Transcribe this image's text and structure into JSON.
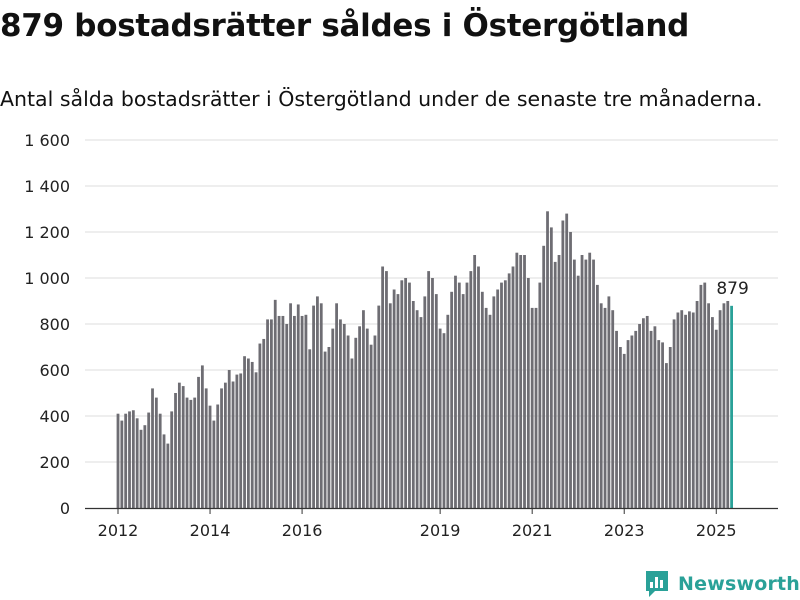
{
  "title": "879 bostadsrätter såldes i Östergötland",
  "subtitle": "Antal sålda bostadsrätter i Östergötland under de senaste tre månaderna.",
  "brand": {
    "name": "Newsworthy",
    "icon": "newsworthy-logo-icon",
    "color": "#2aa198"
  },
  "chart_data": {
    "type": "bar",
    "title": "",
    "xlabel": "",
    "ylabel": "",
    "ylim": [
      0,
      1600
    ],
    "yticks": [
      0,
      200,
      400,
      600,
      800,
      1000,
      1200,
      1400,
      1600
    ],
    "ytick_labels": [
      "0",
      "200",
      "400",
      "600",
      "800",
      "1 000",
      "1 200",
      "1 400",
      "1 600"
    ],
    "xtick_labels": [
      {
        "label": "2012",
        "index": 0
      },
      {
        "label": "2014",
        "index": 24
      },
      {
        "label": "2016",
        "index": 48
      },
      {
        "label": "2019",
        "index": 84
      },
      {
        "label": "2021",
        "index": 108
      },
      {
        "label": "2023",
        "index": 132
      },
      {
        "label": "2025",
        "index": 156
      }
    ],
    "grid": true,
    "bar_color": "#6e6d73",
    "highlight_color": "#2aa198",
    "highlight_label": "879",
    "values": [
      410,
      380,
      410,
      420,
      425,
      390,
      340,
      360,
      415,
      520,
      480,
      410,
      320,
      280,
      420,
      500,
      545,
      530,
      480,
      470,
      480,
      570,
      620,
      520,
      445,
      380,
      450,
      520,
      545,
      600,
      550,
      580,
      585,
      660,
      650,
      635,
      590,
      715,
      735,
      820,
      820,
      905,
      835,
      835,
      800,
      890,
      835,
      885,
      835,
      840,
      690,
      880,
      920,
      890,
      680,
      700,
      780,
      890,
      820,
      800,
      750,
      650,
      740,
      790,
      860,
      780,
      710,
      750,
      880,
      1050,
      1030,
      890,
      950,
      930,
      990,
      1000,
      980,
      900,
      860,
      830,
      920,
      1030,
      1000,
      930,
      780,
      760,
      840,
      940,
      1010,
      980,
      930,
      980,
      1030,
      1100,
      1050,
      940,
      870,
      840,
      920,
      950,
      980,
      990,
      1020,
      1050,
      1110,
      1100,
      1100,
      1000,
      870,
      870,
      980,
      1140,
      1290,
      1220,
      1070,
      1100,
      1250,
      1280,
      1200,
      1080,
      1010,
      1100,
      1080,
      1110,
      1080,
      970,
      890,
      870,
      920,
      860,
      770,
      700,
      670,
      730,
      750,
      770,
      800,
      825,
      835,
      770,
      790,
      730,
      720,
      630,
      700,
      820,
      850,
      860,
      840,
      855,
      850,
      900,
      970,
      980,
      890,
      830,
      775,
      860,
      890,
      900,
      879
    ]
  }
}
